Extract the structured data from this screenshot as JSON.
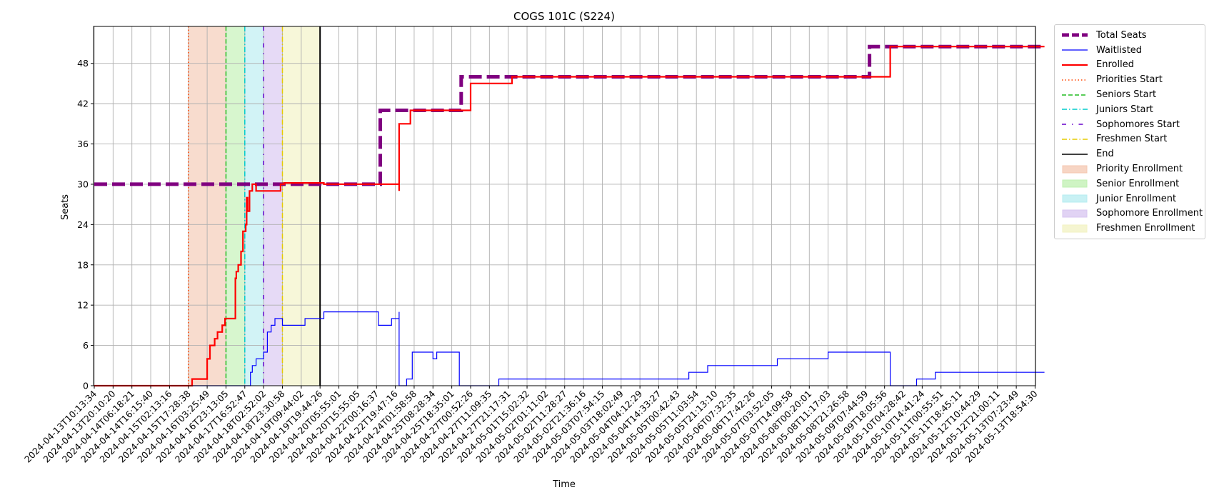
{
  "chart_data": {
    "type": "line",
    "title": "COGS 101C (S224)",
    "xlabel": "Time",
    "ylabel": "Seats",
    "ylim": [
      0,
      53.5
    ],
    "yticks": [
      0,
      6,
      12,
      18,
      24,
      30,
      36,
      42,
      48
    ],
    "grid": true,
    "legend_position": "outside-right",
    "x_range": [
      "2024-04-13T10:13:34",
      "2024-05-14T10:00:00"
    ],
    "x_tick_labels": [
      "2024-04-13T10:13:34",
      "2024-04-13T20:10:20",
      "2024-04-14T06:18:21",
      "2024-04-14T16:15:40",
      "2024-04-15T02:13:16",
      "2024-04-15T17:28:38",
      "2024-04-16T03:25:49",
      "2024-04-16T23:13:05",
      "2024-04-17T16:52:47",
      "2024-04-18T02:52:02",
      "2024-04-18T23:30:58",
      "2024-04-19T09:44:02",
      "2024-04-19T19:44:26",
      "2024-04-20T05:55:01",
      "2024-04-20T15:55:05",
      "2024-04-22T00:16:37",
      "2024-04-22T19:47:16",
      "2024-04-24T01:58:58",
      "2024-04-25T08:28:34",
      "2024-04-25T18:35:01",
      "2024-04-27T00:52:26",
      "2024-04-27T11:09:35",
      "2024-04-27T21:17:31",
      "2024-05-01T15:02:32",
      "2024-05-02T01:11:02",
      "2024-05-02T11:28:27",
      "2024-05-02T21:36:16",
      "2024-05-03T07:54:15",
      "2024-05-03T18:02:49",
      "2024-05-04T04:12:29",
      "2024-05-04T14:33:27",
      "2024-05-05T00:42:43",
      "2024-05-05T11:03:54",
      "2024-05-05T21:13:10",
      "2024-05-06T07:32:35",
      "2024-05-06T17:42:26",
      "2024-05-07T03:52:05",
      "2024-05-07T14:09:58",
      "2024-05-08T00:20:01",
      "2024-05-08T11:17:03",
      "2024-05-08T21:26:58",
      "2024-05-09T07:44:59",
      "2024-05-09T18:05:56",
      "2024-05-10T04:28:42",
      "2024-05-10T14:41:24",
      "2024-05-11T00:55:51",
      "2024-05-11T18:45:11",
      "2024-05-12T10:44:29",
      "2024-05-12T21:00:11",
      "2024-05-13T07:23:49",
      "2024-05-13T18:54:30"
    ],
    "series": [
      {
        "name": "Total Seats",
        "color": "#800080",
        "style": "dashed-thick",
        "points": [
          [
            0,
            30
          ],
          [
            15.2,
            30
          ],
          [
            15.2,
            41
          ],
          [
            19.5,
            41
          ],
          [
            19.5,
            46
          ],
          [
            41.2,
            46
          ],
          [
            41.2,
            50.5
          ],
          [
            50.5,
            50.5
          ]
        ]
      },
      {
        "name": "Waitlisted",
        "color": "#0000ff",
        "style": "solid-thin",
        "points": [
          [
            0,
            0
          ],
          [
            8.3,
            0
          ],
          [
            8.3,
            2
          ],
          [
            8.4,
            2
          ],
          [
            8.4,
            3
          ],
          [
            8.6,
            3
          ],
          [
            8.6,
            4
          ],
          [
            9,
            4
          ],
          [
            9,
            5
          ],
          [
            9.2,
            5
          ],
          [
            9.2,
            8
          ],
          [
            9.4,
            8
          ],
          [
            9.4,
            9
          ],
          [
            9.6,
            9
          ],
          [
            9.6,
            10
          ],
          [
            10,
            10
          ],
          [
            10,
            9
          ],
          [
            11.2,
            9
          ],
          [
            11.2,
            10
          ],
          [
            12.2,
            10
          ],
          [
            12.2,
            11
          ],
          [
            15.1,
            11
          ],
          [
            15.1,
            9
          ],
          [
            15.8,
            9
          ],
          [
            15.8,
            10
          ],
          [
            16.2,
            10
          ],
          [
            16.2,
            11
          ],
          [
            16.2,
            0
          ],
          [
            16.6,
            0
          ],
          [
            16.6,
            1
          ],
          [
            16.9,
            1
          ],
          [
            16.9,
            5
          ],
          [
            18,
            5
          ],
          [
            18,
            4
          ],
          [
            18.2,
            4
          ],
          [
            18.2,
            5
          ],
          [
            19.4,
            5
          ],
          [
            19.4,
            0
          ],
          [
            21.5,
            0
          ],
          [
            21.5,
            1
          ],
          [
            31.6,
            1
          ],
          [
            31.6,
            2
          ],
          [
            32.6,
            2
          ],
          [
            32.6,
            3
          ],
          [
            36.3,
            3
          ],
          [
            36.3,
            4
          ],
          [
            39,
            4
          ],
          [
            39,
            5
          ],
          [
            42.3,
            5
          ],
          [
            42.3,
            0
          ],
          [
            43.7,
            0
          ],
          [
            43.7,
            1
          ],
          [
            44.7,
            1
          ],
          [
            44.7,
            2
          ],
          [
            50.5,
            2
          ]
        ]
      },
      {
        "name": "Enrolled",
        "color": "#ff0000",
        "style": "solid-thick",
        "points": [
          [
            0,
            0
          ],
          [
            5.2,
            0
          ],
          [
            5.2,
            1
          ],
          [
            6,
            1
          ],
          [
            6,
            4
          ],
          [
            6.15,
            4
          ],
          [
            6.15,
            6
          ],
          [
            6.4,
            6
          ],
          [
            6.4,
            7
          ],
          [
            6.55,
            7
          ],
          [
            6.55,
            8
          ],
          [
            6.8,
            8
          ],
          [
            6.8,
            9
          ],
          [
            6.95,
            9
          ],
          [
            6.95,
            10
          ],
          [
            7.5,
            10
          ],
          [
            7.5,
            16
          ],
          [
            7.55,
            16
          ],
          [
            7.55,
            17
          ],
          [
            7.65,
            17
          ],
          [
            7.65,
            18
          ],
          [
            7.8,
            18
          ],
          [
            7.8,
            20
          ],
          [
            7.9,
            20
          ],
          [
            7.9,
            23
          ],
          [
            8.05,
            23
          ],
          [
            8.05,
            24
          ],
          [
            8.1,
            24
          ],
          [
            8.1,
            28
          ],
          [
            8.15,
            28
          ],
          [
            8.15,
            26
          ],
          [
            8.25,
            26
          ],
          [
            8.25,
            29
          ],
          [
            8.4,
            29
          ],
          [
            8.4,
            30
          ],
          [
            8.6,
            30
          ],
          [
            8.6,
            29
          ],
          [
            9.9,
            29
          ],
          [
            9.9,
            30
          ],
          [
            10.1,
            30
          ],
          [
            10.1,
            30.2
          ],
          [
            12.2,
            30.2
          ],
          [
            12.2,
            30
          ],
          [
            16.2,
            30
          ],
          [
            16.2,
            29
          ],
          [
            16.2,
            39
          ],
          [
            16.8,
            39
          ],
          [
            16.8,
            41
          ],
          [
            20,
            41
          ],
          [
            20,
            45
          ],
          [
            22.2,
            45
          ],
          [
            22.2,
            46
          ],
          [
            42.3,
            46
          ],
          [
            42.3,
            50.5
          ],
          [
            50.5,
            50.5
          ]
        ]
      }
    ],
    "vertical_markers": [
      {
        "name": "Priorities Start",
        "color": "#ff4500",
        "style": "dotted",
        "x": "2024-04-15T17:28:38"
      },
      {
        "name": "Seniors Start",
        "color": "#22bb22",
        "style": "dashed",
        "x": "2024-04-16T23:13:05"
      },
      {
        "name": "Juniors Start",
        "color": "#00cccc",
        "style": "dashdot",
        "x": "2024-04-17T16:52:47"
      },
      {
        "name": "Sophomores Start",
        "color": "#6600cc",
        "style": "loose-dashdot",
        "x": "2024-04-18T02:52:02"
      },
      {
        "name": "Freshmen Start",
        "color": "#e6cc00",
        "style": "dashdot",
        "x": "2024-04-18T23:30:58"
      },
      {
        "name": "End",
        "color": "#000000",
        "style": "solid",
        "x": "2024-04-19T19:44:26"
      }
    ],
    "periods": [
      {
        "name": "Priority Enrollment",
        "color": "#f4c7b0",
        "from": "2024-04-15T17:28:38",
        "to": "2024-04-16T23:13:05"
      },
      {
        "name": "Senior Enrollment",
        "color": "#bff0b0",
        "from": "2024-04-16T23:13:05",
        "to": "2024-04-17T16:52:47"
      },
      {
        "name": "Junior Enrollment",
        "color": "#b6ecf0",
        "from": "2024-04-17T16:52:47",
        "to": "2024-04-18T02:52:02"
      },
      {
        "name": "Sophomore Enrollment",
        "color": "#d7c4f0",
        "from": "2024-04-18T02:52:02",
        "to": "2024-04-18T23:30:58"
      },
      {
        "name": "Freshmen Enrollment",
        "color": "#f2f2c2",
        "from": "2024-04-18T23:30:58",
        "to": "2024-04-19T19:44:26"
      }
    ]
  }
}
